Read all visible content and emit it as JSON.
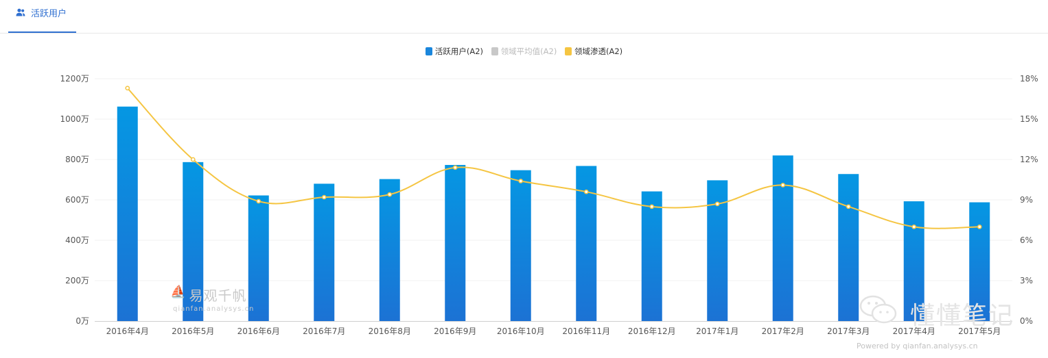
{
  "tab": {
    "label": "活跃用户",
    "icon": "users-icon"
  },
  "legend": [
    {
      "label": "活跃用户(A2)",
      "color": "#1a86dc",
      "active": true
    },
    {
      "label": "领域平均值(A2)",
      "color": "#c8c8c8",
      "active": false
    },
    {
      "label": "领域渗透(A2)",
      "color": "#f5c542",
      "active": true
    }
  ],
  "chart_data": {
    "type": "bar",
    "categories": [
      "2016年4月",
      "2016年5月",
      "2016年6月",
      "2016年7月",
      "2016年8月",
      "2016年9月",
      "2016年10月",
      "2016年11月",
      "2016年12月",
      "2017年1月",
      "2017年2月",
      "2017年3月",
      "2017年4月",
      "2017年5月"
    ],
    "series": [
      {
        "name": "活跃用户(A2)",
        "type": "bar",
        "axis": "left",
        "unit": "万",
        "values": [
          1062,
          787,
          622,
          680,
          703,
          773,
          747,
          768,
          642,
          697,
          820,
          728,
          593,
          588
        ]
      },
      {
        "name": "领域渗透(A2)",
        "type": "line",
        "axis": "right",
        "unit": "%",
        "values": [
          17.3,
          12.0,
          8.9,
          9.2,
          9.4,
          11.4,
          10.4,
          9.6,
          8.5,
          8.7,
          10.1,
          8.5,
          7.0,
          7.0
        ]
      }
    ],
    "y_left": {
      "ticks": [
        "0万",
        "200万",
        "400万",
        "600万",
        "800万",
        "1000万",
        "1200万"
      ],
      "ylim": [
        0,
        1200
      ]
    },
    "y_right": {
      "ticks": [
        "0%",
        "3%",
        "6%",
        "9%",
        "12%",
        "15%",
        "18%"
      ],
      "ylim": [
        0,
        18
      ]
    },
    "grid": true
  },
  "watermark": {
    "title": "易观千帆",
    "url": "qianfan.analysys.cn"
  },
  "brand": {
    "name": "懂懂笔记"
  },
  "powered_by": "Powered by qianfan.analysys.cn"
}
